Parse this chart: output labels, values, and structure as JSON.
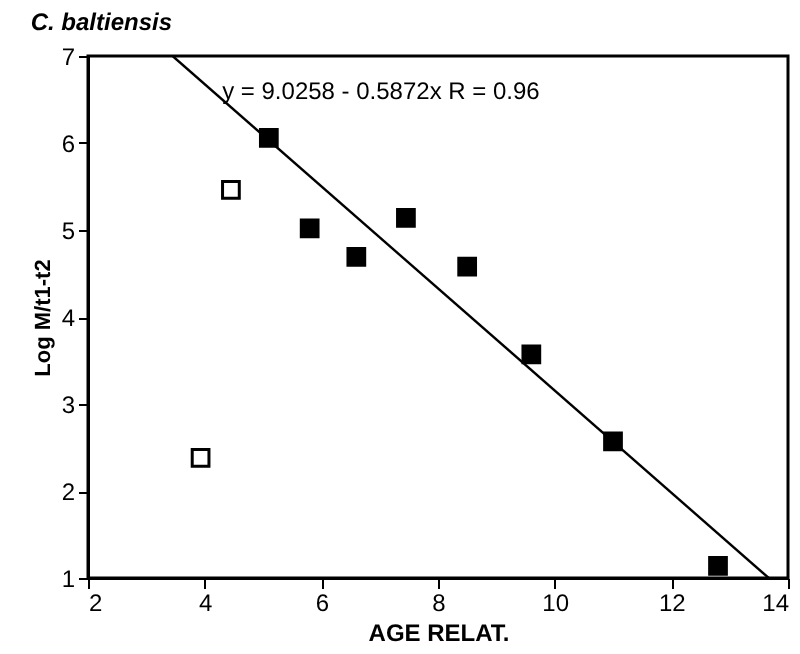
{
  "chart_data": {
    "type": "scatter",
    "title": "C. baltiensis",
    "xlabel": "AGE RELAT.",
    "ylabel": "Log M/t1-t2",
    "xlim": [
      2,
      14
    ],
    "xticks": [
      2,
      4,
      6,
      8,
      10,
      12,
      14
    ],
    "ylim": [
      1,
      7
    ],
    "yticks": [
      1,
      2,
      3,
      4,
      5,
      6,
      7
    ],
    "grid": false,
    "series": [
      {
        "color": "#000000",
        "marker": "square",
        "x": [
          5.1,
          5.8,
          6.6,
          7.45,
          8.5,
          9.6,
          11.0,
          12.8
        ],
        "values": [
          6.06,
          5.02,
          4.69,
          5.14,
          4.58,
          3.57,
          2.57,
          1.14
        ]
      },
      {
        "color": "#ffffff",
        "marker": "square",
        "x": [
          4.45,
          3.93
        ],
        "values": [
          5.46,
          2.38
        ]
      },
      {
        "type": "line",
        "marker": "none",
        "color": "#000000",
        "x": [
          3.45,
          13.67
        ],
        "values": [
          7.0,
          1.0
        ]
      }
    ],
    "annotations": [
      {
        "text": "y = 9.0258 - 0.5872x   R = 0.96",
        "x": 4.3,
        "y": 6.6
      }
    ]
  }
}
